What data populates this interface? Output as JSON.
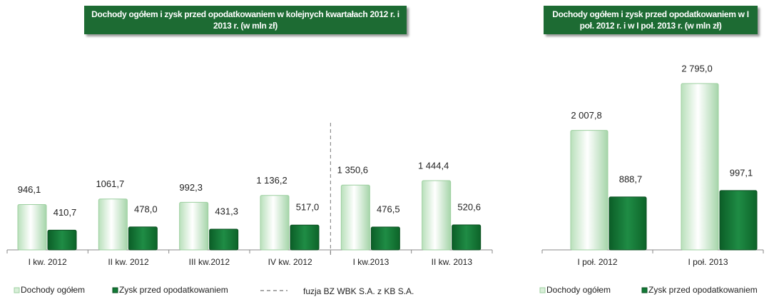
{
  "charts": [
    {
      "chart_data": {
        "type": "bar",
        "title": "Dochody ogółem i zysk przed opodatkowaniem w kolejnych kwartałach 2012 r. i 2013 r. (w mln zł)",
        "categories": [
          "I kw. 2012",
          "II kw. 2012",
          "III kw.2012",
          "IV kw. 2012",
          "I kw.2013",
          "II kw. 2013"
        ],
        "series": [
          {
            "name": "Dochody ogółem",
            "color": "#d9efd9",
            "values": [
              946.1,
              1061.7,
              992.3,
              1136.2,
              1350.6,
              1444.4
            ],
            "value_labels": [
              "946,1",
              "1061,7",
              "992,3",
              "1 136,2",
              "1 350,6",
              "1 444,4"
            ]
          },
          {
            "name": "Zysk przed opodatkowaniem",
            "color": "#127a36",
            "values": [
              410.7,
              478.0,
              431.3,
              517.0,
              476.5,
              520.6
            ],
            "value_labels": [
              "410,7",
              "478,0",
              "431,3",
              "517,0",
              "476,5",
              "520,6"
            ]
          }
        ],
        "annotation": "fuzja BZ WBK S.A. z KB S.A."
      }
    },
    {
      "chart_data": {
        "type": "bar",
        "title": "Dochody ogółem i zysk przed opodatkowaniem w I poł. 2012 r. i w I poł. 2013 r. (w mln zł)",
        "categories": [
          "I poł. 2012",
          "I poł. 2013"
        ],
        "series": [
          {
            "name": "Dochody ogółem",
            "color": "#d9efd9",
            "values": [
              2007.8,
              2795.0
            ],
            "value_labels": [
              "2 007,8",
              "2 795,0"
            ]
          },
          {
            "name": "Zysk przed opodatkowaniem",
            "color": "#127a36",
            "values": [
              888.7,
              997.1
            ],
            "value_labels": [
              "888,7",
              "997,1"
            ]
          }
        ]
      }
    }
  ]
}
